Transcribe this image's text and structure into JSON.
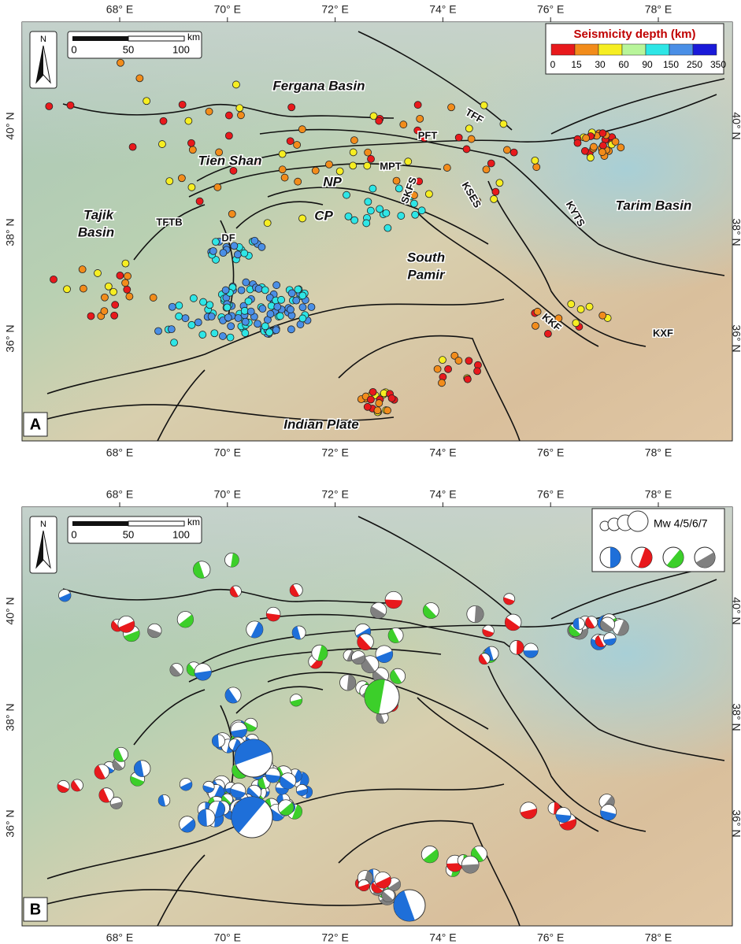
{
  "lon_ticks": [
    "68° E",
    "70° E",
    "72° E",
    "74° E",
    "76° E",
    "78° E"
  ],
  "lat_ticks": [
    "40° N",
    "38° N",
    "36° N"
  ],
  "north": "N",
  "scale_bar": {
    "unit": "km",
    "labels": [
      "0",
      "50",
      "100"
    ]
  },
  "panel_a": {
    "label": "A",
    "legend": {
      "title": "Seismicity depth (km)",
      "labels": [
        "0",
        "15",
        "30",
        "60",
        "90",
        "150",
        "250",
        "350"
      ],
      "colors": [
        "#e8191c",
        "#f28c1b",
        "#f6ee22",
        "#b8f59a",
        "#2ee6e6",
        "#4a8fe6",
        "#1a1ad9"
      ]
    },
    "places": [
      "Fergana Basin",
      "TFF",
      "PFT",
      "Tien Shan",
      "MPT",
      "NP",
      "SKFS",
      "KSES",
      "KYTS",
      "Tarim Basin",
      "CP",
      "Tajik",
      "Basin",
      "TFTB",
      "DF",
      "South",
      "Pamir",
      "KKF",
      "KXF",
      "Indian Plate"
    ]
  },
  "panel_b": {
    "label": "B",
    "legend": {
      "title": "Mw 4/5/6/7",
      "colors": [
        "#1e6fd9",
        "#e8191c",
        "#3ccf2a",
        "#808080"
      ]
    }
  }
}
